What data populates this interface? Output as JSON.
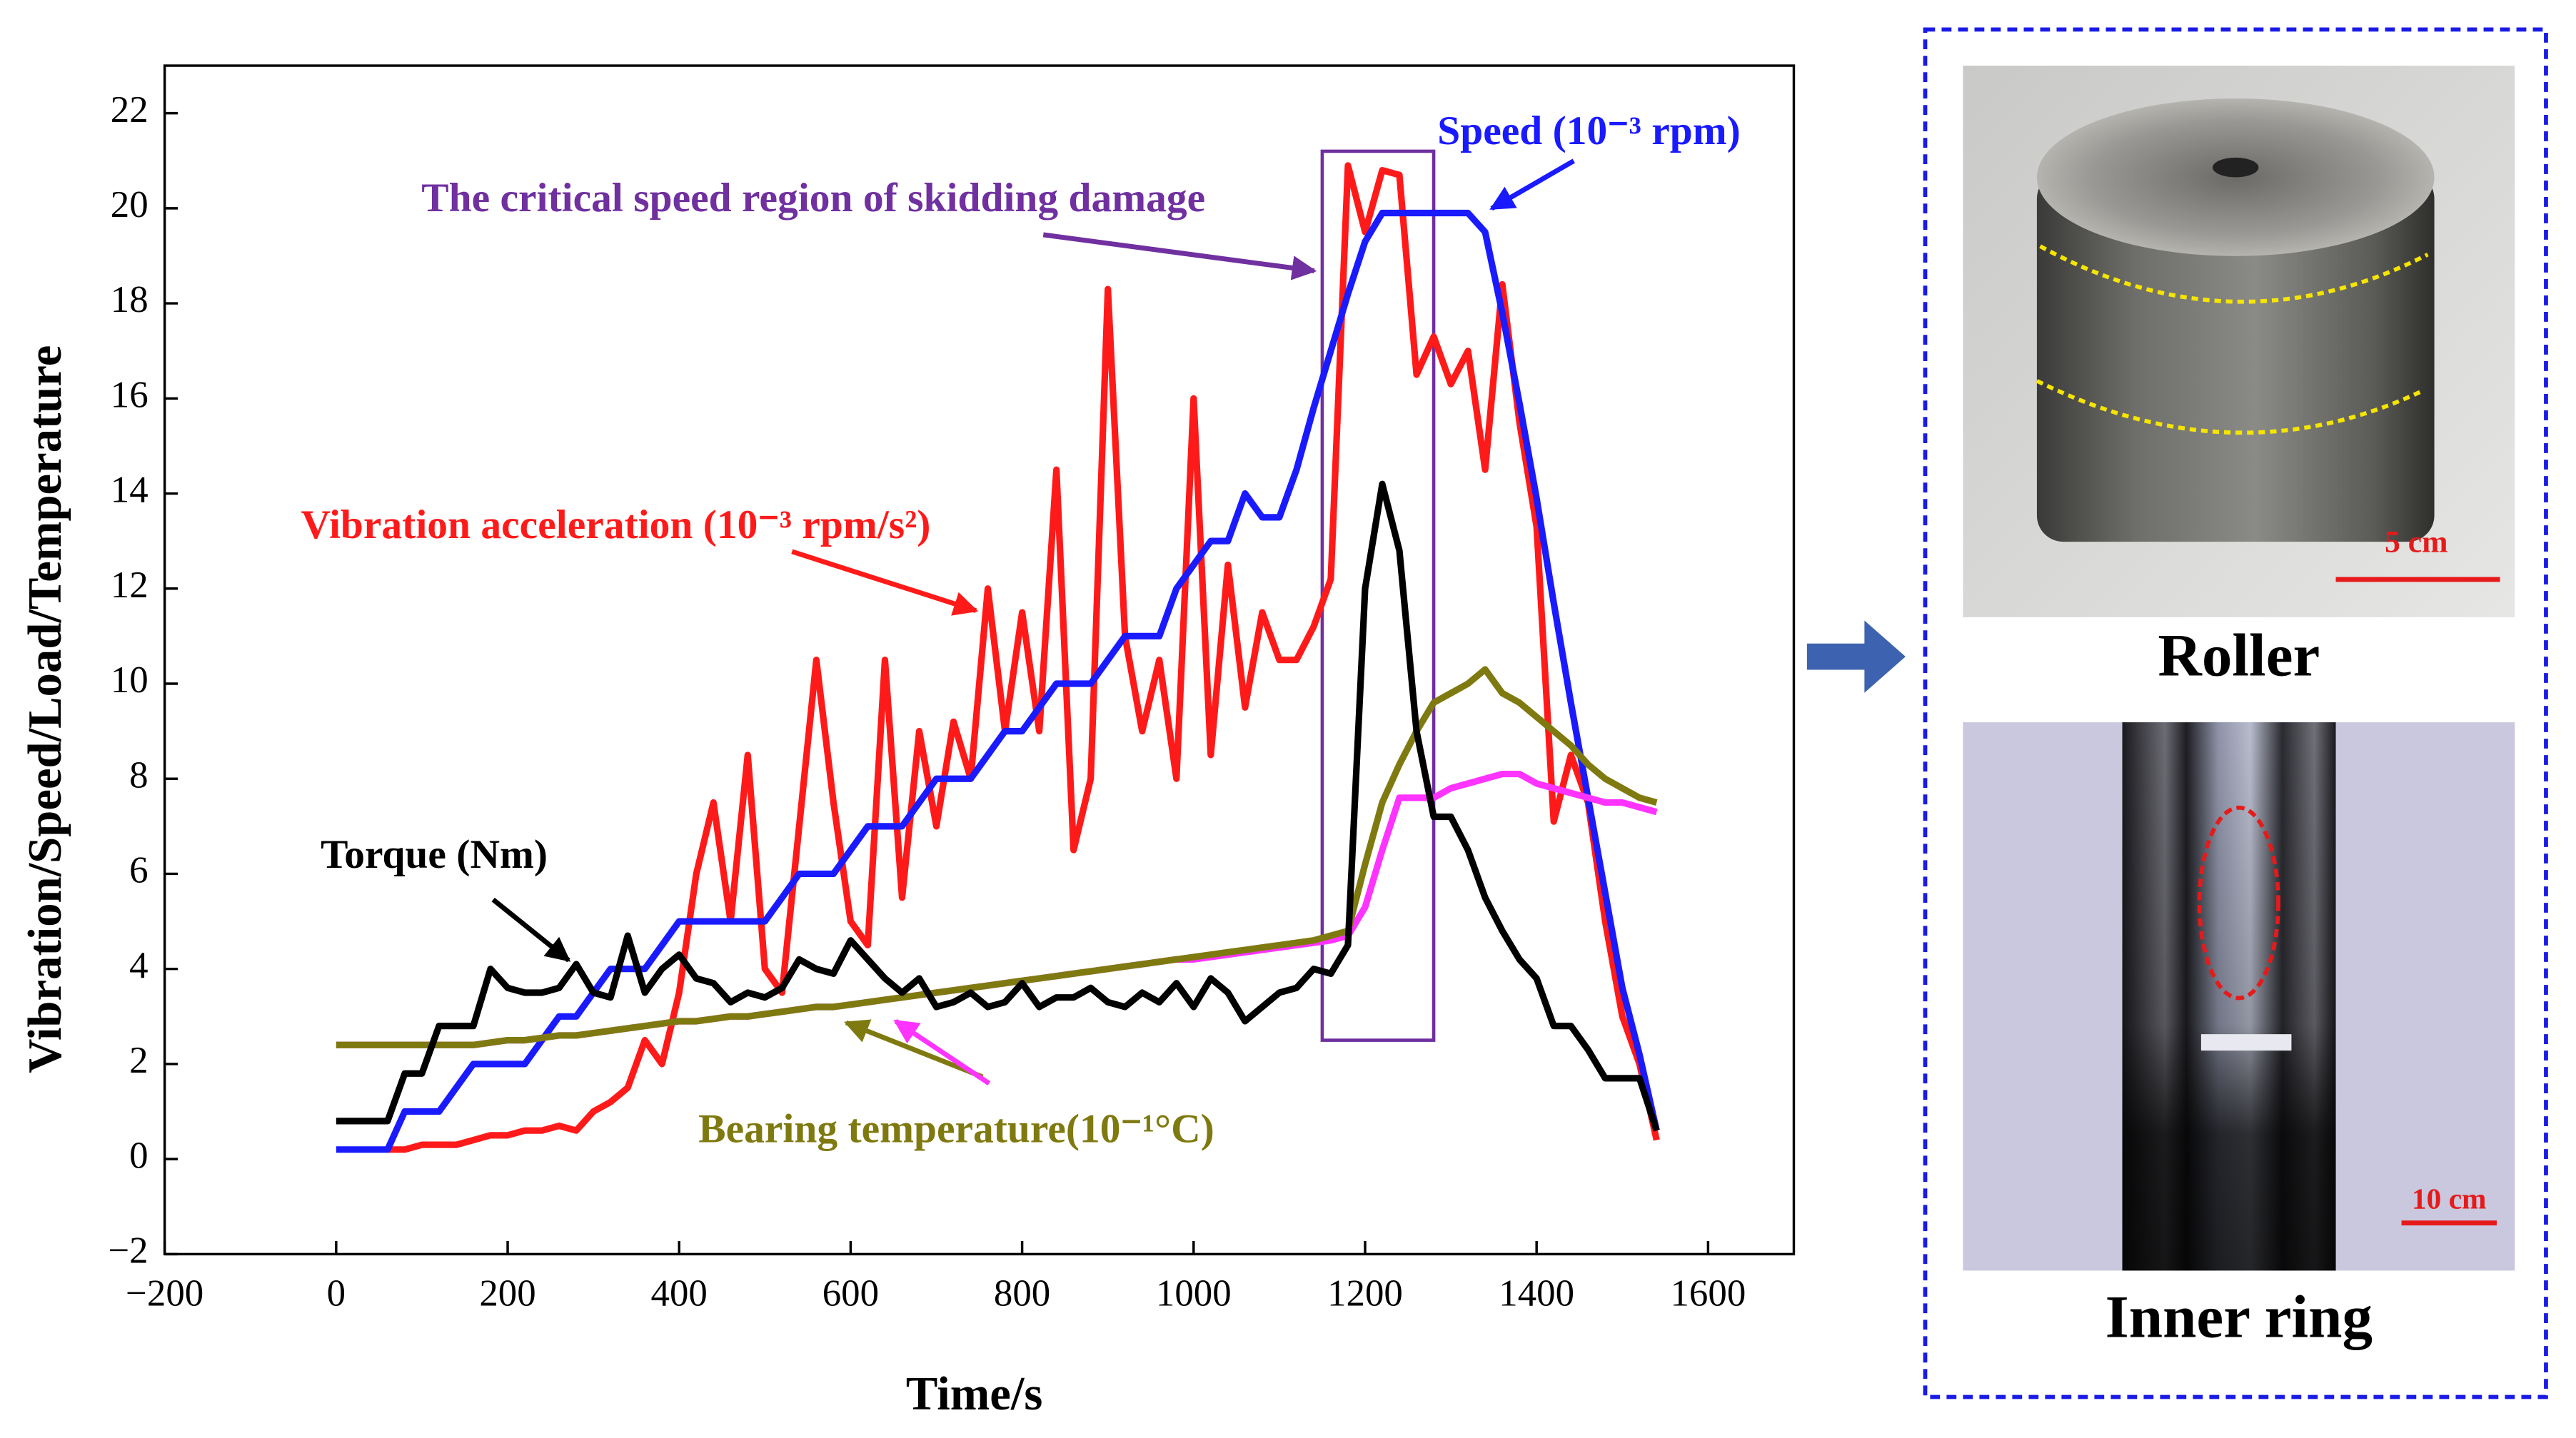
{
  "chart_data": {
    "type": "line",
    "x_label": "Time/s",
    "y_label": "Vibration/Speed/Load/Temperature",
    "x": [
      0,
      20,
      40,
      60,
      80,
      100,
      120,
      140,
      160,
      180,
      200,
      220,
      240,
      260,
      280,
      300,
      320,
      340,
      360,
      380,
      400,
      420,
      440,
      460,
      480,
      500,
      520,
      540,
      560,
      580,
      600,
      620,
      640,
      660,
      680,
      700,
      720,
      740,
      760,
      780,
      800,
      820,
      840,
      860,
      880,
      900,
      920,
      940,
      960,
      980,
      1000,
      1020,
      1040,
      1060,
      1080,
      1100,
      1120,
      1140,
      1160,
      1180,
      1200,
      1220,
      1240,
      1260,
      1280,
      1300,
      1320,
      1340,
      1360,
      1380,
      1400,
      1420,
      1440,
      1460,
      1480,
      1500,
      1520,
      1540
    ],
    "series": [
      {
        "name": "Vibration acceleration (10⁻³ rpm/s²)",
        "color": "#ff1a1a",
        "values": [
          null,
          null,
          null,
          0.2,
          0.2,
          0.3,
          0.3,
          0.3,
          0.4,
          0.5,
          0.5,
          0.6,
          0.6,
          0.7,
          0.6,
          1,
          1.2,
          1.5,
          2.5,
          2,
          3.5,
          6,
          7.5,
          5,
          8.5,
          4,
          3.5,
          7,
          10.5,
          7.5,
          5,
          4.5,
          10.5,
          5.5,
          9,
          7,
          9.2,
          8,
          12,
          9,
          11.5,
          9,
          14.5,
          6.5,
          8,
          18.3,
          11,
          9,
          10.5,
          8,
          16,
          8.5,
          12.5,
          9.5,
          11.5,
          10.5,
          10.5,
          11.2,
          12.2,
          20.9,
          19.5,
          20.8,
          20.7,
          16.5,
          17.3,
          16.3,
          17,
          14.5,
          18.4,
          15.5,
          13.3,
          7.1,
          8.5,
          7.5,
          5,
          3,
          2,
          0.4
        ]
      },
      {
        "name": "Speed (10⁻³ rpm)",
        "color": "#1a1aff",
        "values": [
          0.2,
          0.2,
          0.2,
          0.2,
          1,
          1,
          1,
          1.5,
          2,
          2,
          2,
          2,
          2.5,
          3,
          3,
          3.5,
          4,
          4,
          4,
          4.5,
          5,
          5,
          5,
          5,
          5,
          5,
          5.5,
          6,
          6,
          6,
          6.5,
          7,
          7,
          7,
          7.5,
          8,
          8,
          8,
          8.5,
          9,
          9,
          9.5,
          10,
          10,
          10,
          10.5,
          11,
          11,
          11,
          12,
          12.5,
          13,
          13,
          14,
          13.5,
          13.5,
          14.5,
          15.8,
          17,
          18.2,
          19.3,
          19.9,
          19.9,
          19.9,
          19.9,
          19.9,
          19.9,
          19.5,
          17.8,
          15.9,
          13.9,
          11.7,
          9.6,
          7.6,
          5.6,
          3.6,
          2.2,
          0.6
        ]
      },
      {
        "color": "#ff33ff",
        "values": [
          2.4,
          2.4,
          2.4,
          2.4,
          2.4,
          2.4,
          2.4,
          2.4,
          2.4,
          2.45,
          2.5,
          2.5,
          2.55,
          2.6,
          2.6,
          2.65,
          2.7,
          2.75,
          2.8,
          2.85,
          2.9,
          2.9,
          2.95,
          3,
          3,
          3.05,
          3.1,
          3.15,
          3.2,
          3.2,
          3.25,
          3.3,
          3.35,
          3.4,
          3.45,
          3.5,
          3.55,
          3.6,
          3.65,
          3.7,
          3.75,
          3.8,
          3.85,
          3.9,
          3.95,
          4,
          4.05,
          4.1,
          4.15,
          4.2,
          4.2,
          4.25,
          4.3,
          4.35,
          4.4,
          4.45,
          4.5,
          4.55,
          4.6,
          4.7,
          5.3,
          6.5,
          7.6,
          7.6,
          7.6,
          7.8,
          7.9,
          8,
          8.1,
          8.1,
          7.9,
          7.8,
          7.7,
          7.6,
          7.5,
          7.5,
          7.4,
          7.3
        ]
      },
      {
        "name": "Bearing temperature(10⁻¹°C)",
        "color": "#7f7a10",
        "values": [
          2.4,
          2.4,
          2.4,
          2.4,
          2.4,
          2.4,
          2.4,
          2.4,
          2.4,
          2.45,
          2.5,
          2.5,
          2.55,
          2.6,
          2.6,
          2.65,
          2.7,
          2.75,
          2.8,
          2.85,
          2.9,
          2.9,
          2.95,
          3,
          3,
          3.05,
          3.1,
          3.15,
          3.2,
          3.2,
          3.25,
          3.3,
          3.35,
          3.4,
          3.45,
          3.5,
          3.55,
          3.6,
          3.65,
          3.7,
          3.75,
          3.8,
          3.85,
          3.9,
          3.95,
          4,
          4.05,
          4.1,
          4.15,
          4.2,
          4.25,
          4.3,
          4.35,
          4.4,
          4.45,
          4.5,
          4.55,
          4.6,
          4.7,
          4.8,
          6.2,
          7.5,
          8.3,
          9,
          9.6,
          9.8,
          10,
          10.3,
          9.8,
          9.6,
          9.3,
          9,
          8.7,
          8.3,
          8,
          7.8,
          7.6,
          7.5
        ]
      },
      {
        "name": "Torque (Nm)",
        "color": "#000000",
        "values": [
          0.8,
          0.8,
          0.8,
          0.8,
          1.8,
          1.8,
          2.8,
          2.8,
          2.8,
          4,
          3.6,
          3.5,
          3.5,
          3.6,
          4.1,
          3.5,
          3.4,
          4.7,
          3.5,
          4,
          4.3,
          3.8,
          3.7,
          3.3,
          3.5,
          3.4,
          3.6,
          4.2,
          4,
          3.9,
          4.6,
          4.2,
          3.8,
          3.5,
          3.8,
          3.2,
          3.3,
          3.5,
          3.2,
          3.3,
          3.7,
          3.2,
          3.4,
          3.4,
          3.6,
          3.3,
          3.2,
          3.5,
          3.3,
          3.7,
          3.2,
          3.8,
          3.5,
          2.9,
          3.2,
          3.5,
          3.6,
          4,
          3.9,
          4.5,
          12,
          14.2,
          12.8,
          9,
          7.2,
          7.2,
          6.5,
          5.5,
          4.8,
          4.2,
          3.8,
          2.8,
          2.8,
          2.3,
          1.7,
          1.7,
          1.7,
          0.6
        ]
      }
    ],
    "region": {
      "label": "The critical speed region of skidding damage",
      "color": "#7030a0",
      "x": [
        1150,
        1280
      ],
      "y": [
        2.5,
        21.2
      ]
    },
    "xlim": [
      -200,
      1700
    ],
    "xticks": [
      {
        "value": -200,
        "label": "−200"
      },
      0,
      200,
      400,
      600,
      800,
      1000,
      1200,
      1400,
      1600
    ],
    "ylim": [
      -2,
      23
    ],
    "yticks": [
      {
        "value": -2,
        "label": "−2"
      },
      0,
      2,
      4,
      6,
      8,
      10,
      12,
      14,
      16,
      18,
      20,
      22
    ],
    "grid": false
  },
  "photos": [
    {
      "label": "Roller",
      "scale": "5 cm"
    },
    {
      "label": "Inner ring",
      "scale": "10 cm"
    }
  ]
}
